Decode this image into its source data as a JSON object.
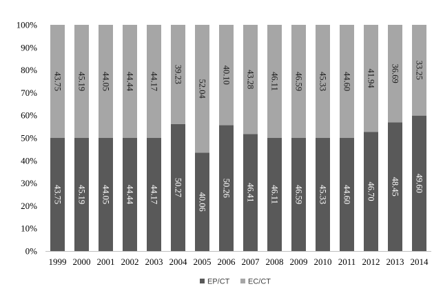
{
  "chart_data": {
    "type": "bar",
    "stacked": true,
    "normalized_percent": true,
    "categories": [
      "1999",
      "2000",
      "2001",
      "2002",
      "2003",
      "2004",
      "2005",
      "2006",
      "2007",
      "2008",
      "2009",
      "2010",
      "2011",
      "2012",
      "2013",
      "2014"
    ],
    "series": [
      {
        "name": "EP/CT",
        "color": "#595959",
        "values": [
          43.75,
          45.19,
          44.05,
          44.44,
          44.17,
          50.27,
          40.06,
          50.26,
          46.41,
          46.11,
          46.59,
          45.33,
          44.6,
          46.7,
          48.45,
          49.6
        ],
        "labels": [
          "43.75",
          "45.19",
          "44.05",
          "44.44",
          "44.17",
          "50.27",
          "40.06",
          "50.26",
          "46.41",
          "46.11",
          "46.59",
          "45.33",
          "44.60",
          "46.70",
          "48.45",
          "49.60"
        ]
      },
      {
        "name": "EC/CT",
        "color": "#a6a6a6",
        "values": [
          43.75,
          45.19,
          44.05,
          44.44,
          44.17,
          39.23,
          52.04,
          40.1,
          43.28,
          46.11,
          46.59,
          45.33,
          44.6,
          41.94,
          36.69,
          33.25
        ],
        "labels": [
          "43.75",
          "45.19",
          "44.05",
          "44.44",
          "44.17",
          "39.23",
          "52.04",
          "40.10",
          "43.28",
          "46.11",
          "46.59",
          "45.33",
          "44.60",
          "41.94",
          "36.69",
          "33.25"
        ]
      }
    ],
    "y_ticks": [
      "0%",
      "10%",
      "20%",
      "30%",
      "40%",
      "50%",
      "60%",
      "70%",
      "80%",
      "90%",
      "100%"
    ],
    "ylim": [
      0,
      100
    ],
    "grid": false,
    "legend_position": "bottom",
    "title": "",
    "xlabel": "",
    "ylabel": ""
  }
}
